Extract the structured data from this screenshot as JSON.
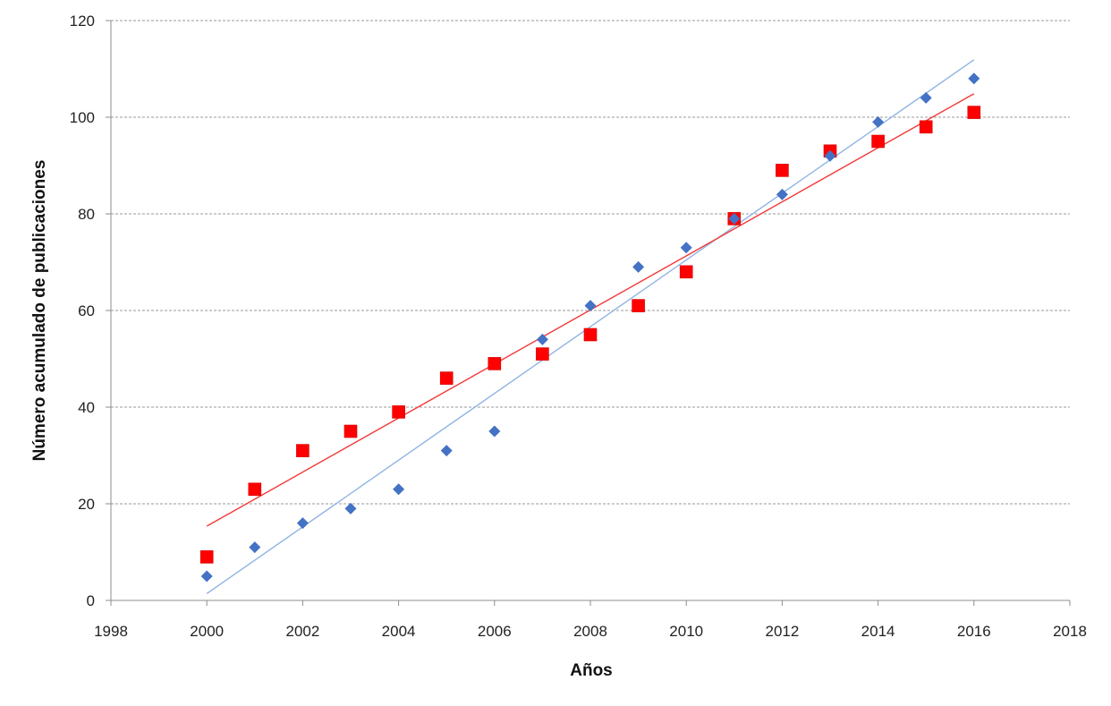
{
  "chart_data": {
    "type": "scatter",
    "title": "",
    "xlabel": "Años",
    "ylabel": "Número acumulado de publicaciones",
    "xlim": [
      1998,
      2018
    ],
    "ylim": [
      0,
      120
    ],
    "xticks": [
      "1998",
      "2000",
      "2002",
      "2004",
      "2006",
      "2008",
      "2010",
      "2012",
      "2014",
      "2016",
      "2018"
    ],
    "yticks": [
      "0",
      "20",
      "40",
      "60",
      "80",
      "100",
      "120"
    ],
    "grid": "horizontal dashed",
    "legend": "none",
    "series": [
      {
        "marker": "diamond",
        "color": "#4472C4",
        "trendline": "linear",
        "points": [
          [
            2000,
            5
          ],
          [
            2001,
            11
          ],
          [
            2002,
            16
          ],
          [
            2003,
            19
          ],
          [
            2004,
            23
          ],
          [
            2005,
            31
          ],
          [
            2006,
            35
          ],
          [
            2007,
            54
          ],
          [
            2008,
            61
          ],
          [
            2009,
            69
          ],
          [
            2010,
            73
          ],
          [
            2011,
            79
          ],
          [
            2012,
            84
          ],
          [
            2013,
            92
          ],
          [
            2014,
            99
          ],
          [
            2015,
            104
          ],
          [
            2016,
            108
          ]
        ]
      },
      {
        "marker": "square",
        "color": "#FF0000",
        "trendline": "linear",
        "points": [
          [
            2000,
            9
          ],
          [
            2001,
            23
          ],
          [
            2002,
            31
          ],
          [
            2003,
            35
          ],
          [
            2004,
            39
          ],
          [
            2005,
            46
          ],
          [
            2006,
            49
          ],
          [
            2007,
            51
          ],
          [
            2008,
            55
          ],
          [
            2009,
            61
          ],
          [
            2010,
            68
          ],
          [
            2011,
            79
          ],
          [
            2012,
            89
          ],
          [
            2013,
            93
          ],
          [
            2014,
            95
          ],
          [
            2015,
            98
          ],
          [
            2016,
            101
          ]
        ]
      }
    ],
    "trend_colors": [
      "#8FB4E3",
      "#F23A3A"
    ]
  }
}
